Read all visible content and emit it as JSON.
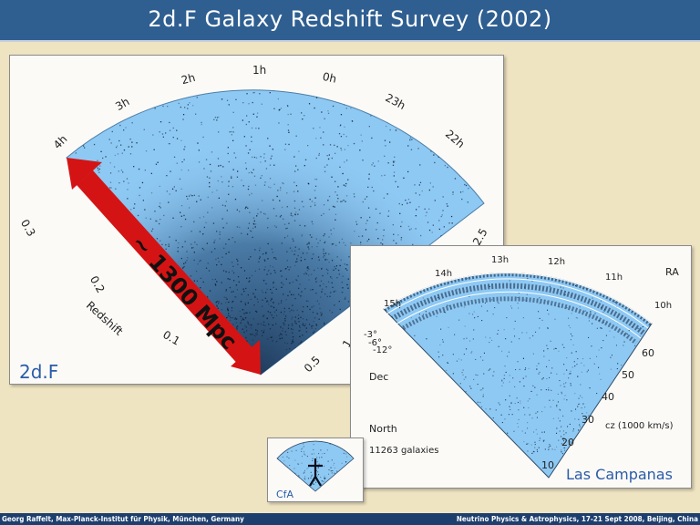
{
  "title": "2d.F Galaxy Redshift Survey (2002)",
  "twodf": {
    "label": "2d.F",
    "ra_labels": [
      "4h",
      "3h",
      "2h",
      "1h",
      "0h",
      "23h",
      "22h"
    ],
    "z_left": [
      "0.3",
      "0.2",
      "0.1"
    ],
    "z_right": [
      "2.5",
      "1",
      "0.5"
    ],
    "redshift_axis": "Redshift",
    "arrow_label": "~ 1300 Mpc"
  },
  "lc": {
    "label": "Las Campanas",
    "ra_axis": "RA",
    "ra_labels": [
      "15h",
      "14h",
      "13h",
      "12h",
      "11h",
      "10h"
    ],
    "dec_values": [
      "-3°",
      "-6°",
      "-12°"
    ],
    "dec_label": "Dec",
    "cz_values": [
      "60",
      "50",
      "40",
      "30",
      "20",
      "10"
    ],
    "cz_axis": "cz (1000 km/s)",
    "north": "North",
    "count": "11263 galaxies"
  },
  "cfa": {
    "label": "CfA"
  },
  "footer": {
    "left": "Georg Raffelt, Max-Planck-Institut für Physik, München, Germany",
    "right": "Neutrino Physics & Astrophysics, 17-21 Sept 2008, Beijing, China"
  },
  "colors": {
    "title_bar": "#2f5f91",
    "survey_fill": "#8ec9f4",
    "arrow": "#d41414",
    "label_blue": "#2a5ca8"
  }
}
